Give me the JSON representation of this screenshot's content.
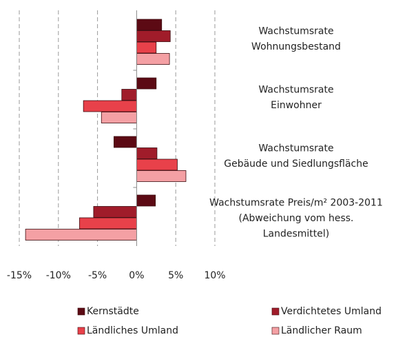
{
  "chart_data": {
    "type": "hbar",
    "categories": [
      "Wachstumsrate\nWohnungsbestand",
      "Wachstumsrate\nEinwohner",
      "Wachstumsrate\nGebäude und Siedlungsfläche",
      "Wachstumsrate Preis/m² 2003-2011\n(Abweichung vom hess.\nLandesmittel)"
    ],
    "series": [
      {
        "name": "Kernstädte",
        "color": "#5c0a14",
        "values": [
          3.2,
          2.5,
          -2.9,
          2.4
        ]
      },
      {
        "name": "Verdichtetes Umland",
        "color": "#a01c2a",
        "values": [
          4.3,
          -1.9,
          2.6,
          -5.5
        ]
      },
      {
        "name": "Ländliches Umland",
        "color": "#e8414a",
        "values": [
          2.5,
          -6.8,
          5.2,
          -7.3
        ]
      },
      {
        "name": "Ländlicher Raum",
        "color": "#f4a0a4",
        "values": [
          4.2,
          -4.5,
          6.3,
          -14.2
        ]
      }
    ],
    "xlim": [
      -15,
      10
    ],
    "xticks": [
      {
        "value": -15,
        "label": "-15%"
      },
      {
        "value": -10,
        "label": "-10%"
      },
      {
        "value": -5,
        "label": "-5%"
      },
      {
        "value": 0,
        "label": "0%"
      },
      {
        "value": 5,
        "label": "5%"
      },
      {
        "value": 10,
        "label": "10%"
      }
    ],
    "grid": true,
    "legend": "bottom"
  }
}
